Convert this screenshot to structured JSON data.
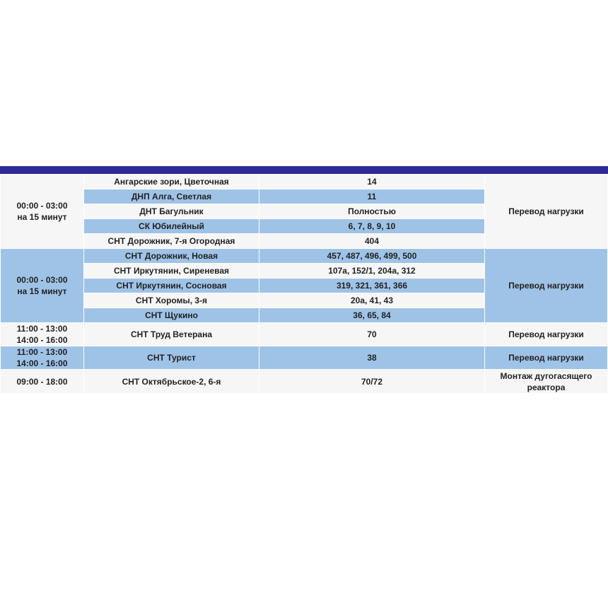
{
  "colors": {
    "header": "#2f2a95",
    "row_light": "#f6f6f6",
    "row_blue": "#9fc3e7"
  },
  "groups": [
    {
      "time": [
        "00:00 - 03:00",
        "на 15 минут"
      ],
      "note": "Перевод нагрузки",
      "rows": [
        {
          "place": "Ангарские зори, Цветочная",
          "houses": "14"
        },
        {
          "place": "ДНП Алга, Светлая",
          "houses": "11"
        },
        {
          "place": "ДНТ Багульник",
          "houses": "Полностью"
        },
        {
          "place": "СК Юбилейный",
          "houses": "6, 7, 8, 9, 10"
        },
        {
          "place": "СНТ Дорожник, 7-я Огородная",
          "houses": "404"
        }
      ]
    },
    {
      "time": [
        "00:00 - 03:00",
        "на 15 минут"
      ],
      "note": "Перевод нагрузки",
      "rows": [
        {
          "place": "СНТ Дорожник, Новая",
          "houses": "457, 487, 496, 499, 500"
        },
        {
          "place": "СНТ Иркутянин, Сиреневая",
          "houses": "107а, 152/1, 204а, 312"
        },
        {
          "place": "СНТ Иркутянин, Сосновая",
          "houses": "319, 321, 361, 366"
        },
        {
          "place": "СНТ Хоромы, 3-я",
          "houses": "20а, 41, 43"
        },
        {
          "place": "СНТ Щукино",
          "houses": "36, 65, 84"
        }
      ]
    },
    {
      "time": [
        "11:00 - 13:00",
        "14:00 - 16:00"
      ],
      "note": "Перевод нагрузки",
      "rows": [
        {
          "place": "СНТ Труд Ветерана",
          "houses": "70"
        }
      ]
    },
    {
      "time": [
        "11:00 - 13:00",
        "14:00 - 16:00"
      ],
      "note": "Перевод нагрузки",
      "rows": [
        {
          "place": "СНТ Турист",
          "houses": "38"
        }
      ]
    },
    {
      "time": [
        "09:00 - 18:00"
      ],
      "note": "Монтаж дугогасящего реактора",
      "rows": [
        {
          "place": "СНТ Октябрьское-2, 6-я",
          "houses": "70/72"
        }
      ]
    }
  ]
}
